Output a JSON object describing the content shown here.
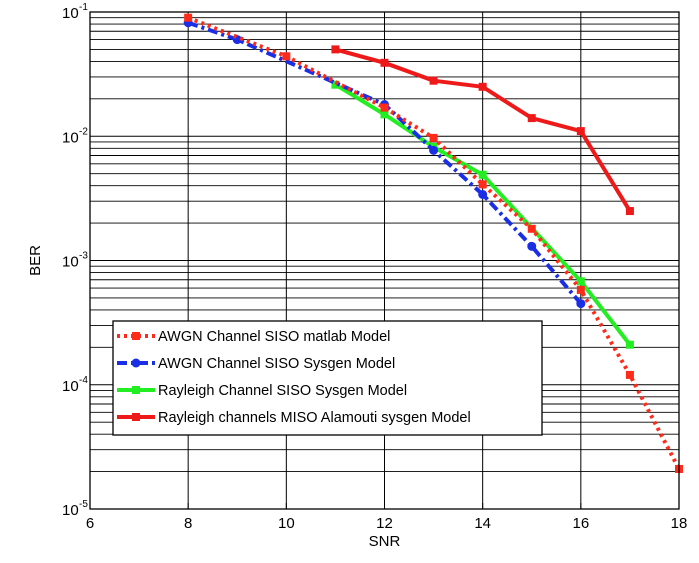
{
  "chart_data": {
    "type": "line",
    "xlabel": "SNR",
    "ylabel": "BER",
    "xlim": [
      6,
      18
    ],
    "ylim": [
      1e-05,
      0.1
    ],
    "yscale": "log",
    "grid": true,
    "legend_position": "bottom-left",
    "x_ticks": [
      {
        "v": 6,
        "label": "6"
      },
      {
        "v": 8,
        "label": "8"
      },
      {
        "v": 10,
        "label": "10"
      },
      {
        "v": 12,
        "label": "12"
      },
      {
        "v": 14,
        "label": "14"
      },
      {
        "v": 16,
        "label": "16"
      },
      {
        "v": 18,
        "label": "18"
      }
    ],
    "y_ticks": [
      {
        "v": 1e-05,
        "base": "10",
        "exp": "-5"
      },
      {
        "v": 0.0001,
        "base": "10",
        "exp": "-4"
      },
      {
        "v": 0.001,
        "base": "10",
        "exp": "-3"
      },
      {
        "v": 0.01,
        "base": "10",
        "exp": "-2"
      },
      {
        "v": 0.1,
        "base": "10",
        "exp": "-1"
      }
    ],
    "series": [
      {
        "name": "AWGN Channel SISO matlab Model",
        "color": "#ff2a1a",
        "line_style": "dotted",
        "marker": "square",
        "x": [
          8,
          10,
          12,
          13,
          14,
          15,
          16,
          17,
          18
        ],
        "y": [
          0.09,
          0.044,
          0.017,
          0.0097,
          0.0041,
          0.0018,
          0.00058,
          0.00012,
          2.1e-05
        ]
      },
      {
        "name": "AWGN Channel SISO Sysgen Model",
        "color": "#1a2ee6",
        "line_style": "dashdot",
        "marker": "circle",
        "x": [
          8,
          9,
          12,
          13,
          14,
          15,
          16
        ],
        "y": [
          0.082,
          0.06,
          0.018,
          0.0077,
          0.0034,
          0.0013,
          0.00045
        ]
      },
      {
        "name": "Rayleigh Channel SISO Sysgen Model",
        "color": "#22ee22",
        "line_style": "solid",
        "marker": "square",
        "x": [
          11,
          12,
          13,
          14,
          16,
          17
        ],
        "y": [
          0.026,
          0.015,
          0.0082,
          0.0049,
          0.00068,
          0.00021
        ]
      },
      {
        "name": "Rayleigh channels MISO Alamouti sysgen Model",
        "color": "#ee1a1a",
        "line_style": "solid",
        "marker": "square",
        "x": [
          11,
          12,
          13,
          14,
          15,
          16,
          17
        ],
        "y": [
          0.05,
          0.039,
          0.028,
          0.025,
          0.014,
          0.011,
          0.0025
        ]
      }
    ]
  }
}
